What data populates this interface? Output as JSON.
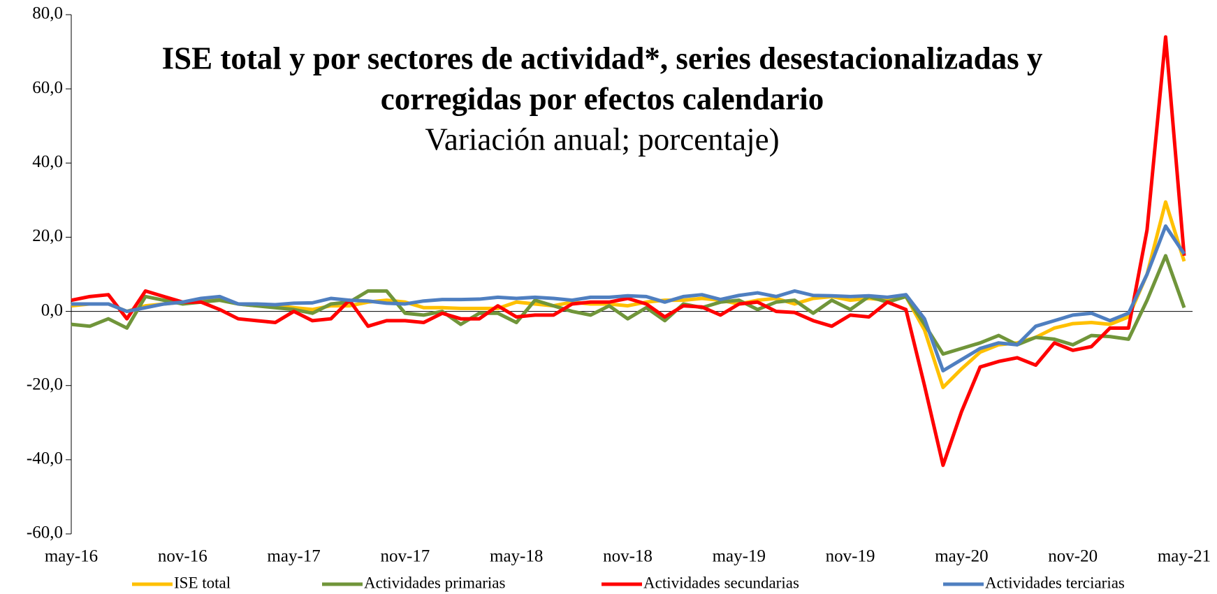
{
  "chart_data": {
    "type": "line",
    "title": [
      "ISE total y por sectores de actividad*, series desestacionalizadas y",
      "corregidas por efectos calendario"
    ],
    "subtitle": "Variación anual; porcentaje)",
    "categories": [
      "may-16",
      null,
      null,
      null,
      null,
      null,
      "nov-16",
      null,
      null,
      null,
      null,
      null,
      "may-17",
      null,
      null,
      null,
      null,
      null,
      "nov-17",
      null,
      null,
      null,
      null,
      null,
      "may-18",
      null,
      null,
      null,
      null,
      null,
      "nov-18",
      null,
      null,
      null,
      null,
      null,
      "may-19",
      null,
      null,
      null,
      null,
      null,
      "nov-19",
      null,
      null,
      null,
      null,
      null,
      "may-20",
      null,
      null,
      null,
      null,
      null,
      "nov-20",
      null,
      null,
      null,
      null,
      null,
      "may-21"
    ],
    "series": [
      {
        "name": "ISE total",
        "color": "#ffc000",
        "values": [
          1.5,
          2,
          2,
          0,
          1.5,
          2,
          2.5,
          2.5,
          3.5,
          2,
          1.5,
          1.5,
          1,
          0.5,
          1.5,
          1.5,
          2.5,
          3,
          2.5,
          1,
          1,
          0.8,
          0.8,
          0.8,
          2.5,
          2,
          1.5,
          2.5,
          2,
          2,
          1.5,
          2.5,
          3,
          3,
          3.5,
          3,
          2,
          3,
          3.5,
          2,
          3.5,
          4,
          3,
          3.5,
          3,
          4,
          -5,
          -20.5,
          -15.5,
          -11,
          -9,
          -8.5,
          -7,
          -4.5,
          -3.3,
          -3,
          -3.5,
          -1.5,
          10,
          29.5,
          13.5
        ]
      },
      {
        "name": "Actividades primarias",
        "color": "#70953a",
        "values": [
          -3.5,
          -4,
          -2,
          -4.5,
          4,
          3,
          2,
          2.5,
          3,
          2,
          1.5,
          1,
          0.5,
          -0.5,
          2,
          2.5,
          5.5,
          5.5,
          -0.5,
          -1,
          0,
          -3.5,
          -0.5,
          -0.5,
          -3,
          3,
          1.5,
          0,
          -1,
          1.5,
          -2,
          1,
          -2.5,
          2,
          1,
          2.5,
          3,
          0.5,
          2.5,
          3,
          -0.5,
          3,
          0.5,
          4,
          2.5,
          4,
          -3.5,
          -11.5,
          -10,
          -8.5,
          -6.5,
          -9,
          -7,
          -7.5,
          -9,
          -6.5,
          -6.8,
          -7.5,
          3,
          15,
          1
        ]
      },
      {
        "name": "Actividades secundarias",
        "color": "#ff0000",
        "values": [
          3,
          4,
          4.5,
          -2,
          5.5,
          4,
          2.5,
          2.5,
          0.5,
          -2,
          -2.5,
          -3,
          0,
          -2.5,
          -2,
          3,
          -4,
          -2.5,
          -2.5,
          -3,
          -0.5,
          -2,
          -2,
          1.5,
          -1.5,
          -1,
          -1,
          2,
          2.5,
          2.5,
          3.5,
          2,
          -1.5,
          1.5,
          1.2,
          -1,
          2,
          2.5,
          0,
          -0.3,
          -2.5,
          -4,
          -1,
          -1.5,
          2.5,
          0.5,
          -20,
          -41.5,
          -27,
          -15,
          -13.5,
          -12.5,
          -14.5,
          -8.5,
          -10.5,
          -9.5,
          -4.5,
          -4.5,
          22,
          74,
          15
        ]
      },
      {
        "name": "Actividades terciarias",
        "color": "#4f7fc0",
        "values": [
          2,
          2,
          2,
          0,
          1,
          2,
          2.5,
          3.5,
          4,
          2,
          2,
          1.8,
          2.2,
          2.3,
          3.5,
          3,
          2.8,
          2.2,
          2,
          2.8,
          3.2,
          3.2,
          3.3,
          3.8,
          3.5,
          3.8,
          3.5,
          3,
          3.8,
          3.8,
          4.2,
          4,
          2.5,
          4,
          4.5,
          3.2,
          4.3,
          5,
          4,
          5.5,
          4.3,
          4.2,
          4,
          4.2,
          3.8,
          4.5,
          -2,
          -16,
          -13,
          -10,
          -8.5,
          -9,
          -4,
          -2.5,
          -1,
          -0.5,
          -2.5,
          -0.5,
          10,
          23,
          15.5
        ]
      }
    ],
    "ylim": [
      -60,
      80
    ],
    "yticks": [
      {
        "value": -60,
        "label": "-60,0"
      },
      {
        "value": -40,
        "label": "-40,0"
      },
      {
        "value": -20,
        "label": "-20,0"
      },
      {
        "value": 0,
        "label": "0,0"
      },
      {
        "value": 20,
        "label": "20,0"
      },
      {
        "value": 40,
        "label": "40,0"
      },
      {
        "value": 60,
        "label": "60,0"
      },
      {
        "value": 80,
        "label": "80,0"
      }
    ],
    "grid": false,
    "legend": "bottom"
  }
}
